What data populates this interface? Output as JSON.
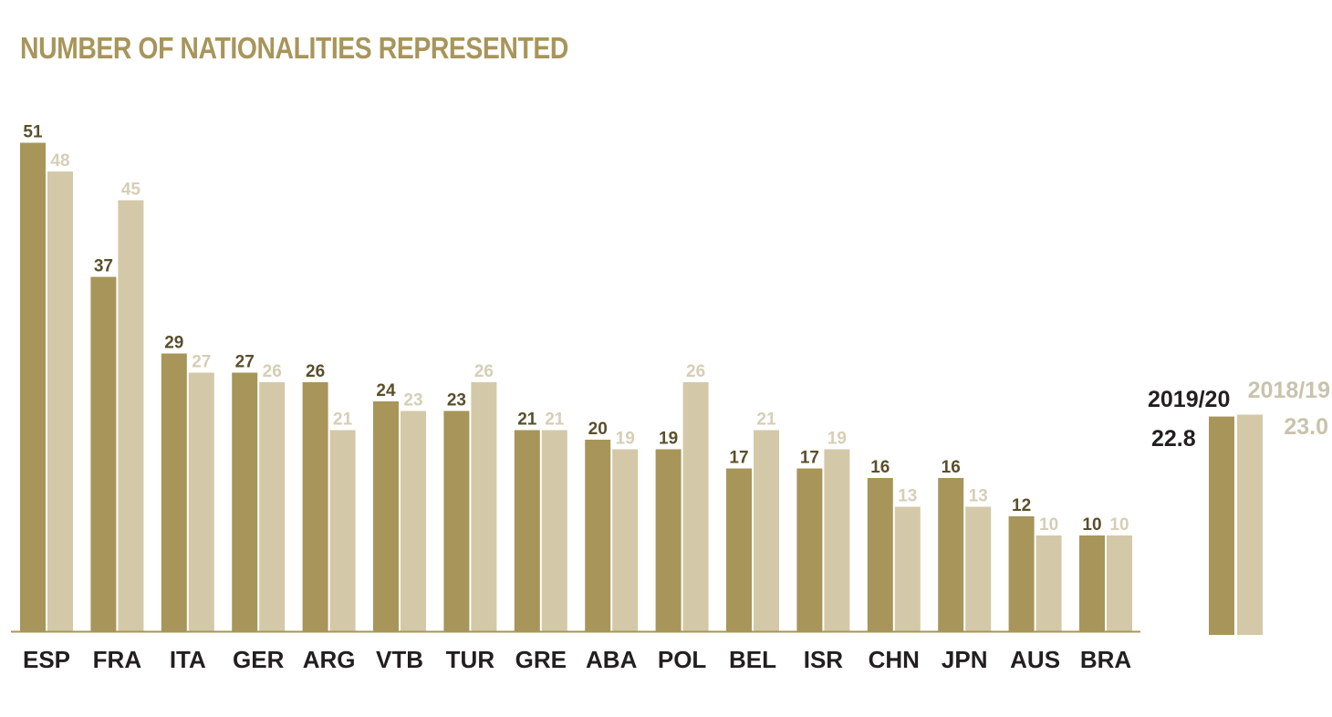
{
  "chart_data": {
    "type": "bar",
    "title": "NUMBER OF NATIONALITIES REPRESENTED",
    "xlabel": "",
    "ylabel": "",
    "grid": false,
    "categories": [
      "ESP",
      "FRA",
      "ITA",
      "GER",
      "ARG",
      "VTB",
      "TUR",
      "GRE",
      "ABA",
      "POL",
      "BEL",
      "ISR",
      "CHN",
      "JPN",
      "AUS",
      "BRA"
    ],
    "series": [
      {
        "name": "2019/20",
        "color": "#a8955a",
        "values": [
          51,
          37,
          29,
          27,
          26,
          24,
          23,
          21,
          20,
          19,
          17,
          17,
          16,
          16,
          12,
          10
        ]
      },
      {
        "name": "2018/19",
        "color": "#d3c9a8",
        "values": [
          48,
          45,
          27,
          26,
          21,
          23,
          26,
          21,
          19,
          26,
          21,
          19,
          13,
          13,
          10,
          10
        ]
      }
    ],
    "averages": [
      {
        "label": "2019/20",
        "value": 22.8,
        "display": "22.8",
        "color": "#a8955a",
        "text_color": "#231f20"
      },
      {
        "label": "2018/19",
        "value": 23.0,
        "display": "23.0",
        "color": "#d3c9a8",
        "text_color": "#c9c3ad"
      }
    ],
    "dark_label_color": "#5a4f2c",
    "light_label_color": "#d6ceb5",
    "tick_label_color": "#231f20",
    "axis_color": "#a8955a"
  }
}
